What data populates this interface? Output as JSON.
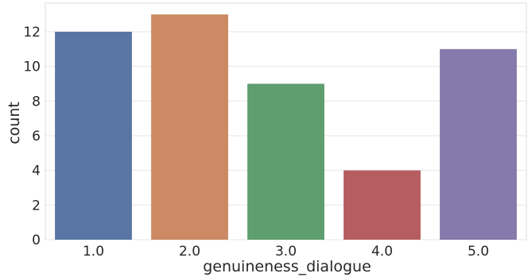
{
  "chart_data": {
    "type": "bar",
    "title": "",
    "xlabel": "genuineness_dialogue",
    "ylabel": "count",
    "categories": [
      "1.0",
      "2.0",
      "3.0",
      "4.0",
      "5.0"
    ],
    "values": [
      12,
      13,
      9,
      4,
      11
    ],
    "colors": [
      "#5975a4",
      "#cc8963",
      "#5f9e6e",
      "#b55d60",
      "#857aab"
    ],
    "ylim": [
      0,
      13.65
    ],
    "yticks": [
      0,
      2,
      4,
      6,
      8,
      10,
      12
    ],
    "grid": true,
    "grid_axis": "y",
    "legend": "none"
  }
}
